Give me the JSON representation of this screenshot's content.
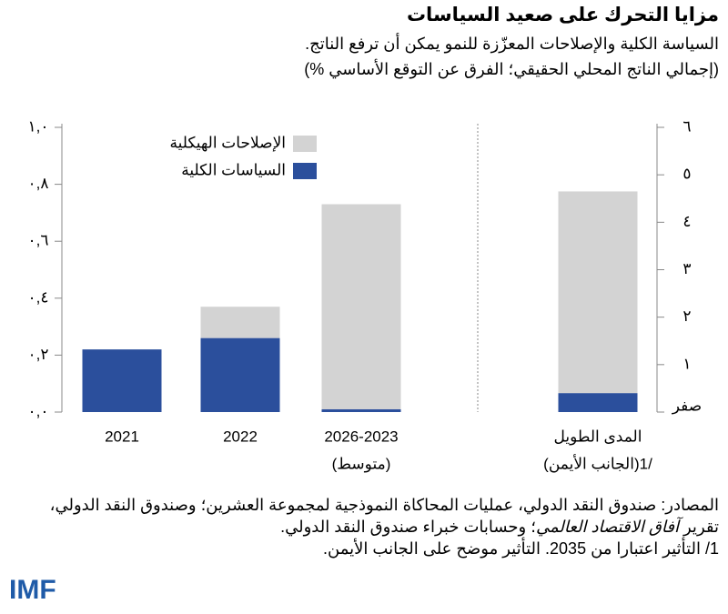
{
  "header": {
    "title": "مزايا التحرك على صعيد السياسات",
    "subtitle": "السياسة الكلية والإصلاحات المعزّزة للنمو يمكن أن ترفع الناتج.",
    "units": "(إجمالي الناتج المحلي الحقيقي؛ الفرق عن التوقع الأساسي %)"
  },
  "chart_data": {
    "type": "bar",
    "stacked": true,
    "categories": [
      [
        "2021"
      ],
      [
        "2022"
      ],
      [
        "2026-2023",
        "(متوسط)"
      ],
      [
        "المدى الطويل",
        "(الجانب الأيمن)1/"
      ]
    ],
    "series": [
      {
        "name": "السياسات الكلية",
        "color": "#2b4f9c",
        "values": [
          0.22,
          0.26,
          0.01,
          null
        ]
      },
      {
        "name": "الإصلاحات الهيكلية",
        "color": "#d3d3d3",
        "values": [
          null,
          0.11,
          0.72,
          null
        ]
      },
      {
        "name": "السياسات الكلية",
        "color": "#2b4f9c",
        "axis": "y2",
        "values": [
          null,
          null,
          null,
          0.4
        ]
      },
      {
        "name": "الإصلاحات الهيكلية",
        "color": "#d3d3d3",
        "axis": "y2",
        "values": [
          null,
          null,
          null,
          4.25
        ]
      }
    ],
    "ylim": [
      0,
      1
    ],
    "yticks": [
      {
        "value": 0,
        "label": "٠,٠"
      },
      {
        "value": 0.2,
        "label": "٠,٢"
      },
      {
        "value": 0.4,
        "label": "٠,٤"
      },
      {
        "value": 0.6,
        "label": "٠,٦"
      },
      {
        "value": 0.8,
        "label": "٠,٨"
      },
      {
        "value": 1,
        "label": "١,٠"
      }
    ],
    "y2lim": [
      0,
      6
    ],
    "y2ticks": [
      {
        "value": 0,
        "label": "صفر"
      },
      {
        "value": 1,
        "label": "١"
      },
      {
        "value": 2,
        "label": "٢"
      },
      {
        "value": 3,
        "label": "٣"
      },
      {
        "value": 4,
        "label": "٤"
      },
      {
        "value": 5,
        "label": "٥"
      },
      {
        "value": 6,
        "label": "٦"
      }
    ]
  },
  "footer": {
    "sources_1": "المصادر: صندوق النقد الدولي، عمليات المحاكاة النموذجية لمجموعة العشرين؛ وصندوق النقد الدولي،",
    "sources_2a": "تقرير ",
    "sources_2b": "آفاق الاقتصاد العالمي",
    "sources_2c": "؛ وحسابات خبراء صندوق النقد الدولي.",
    "note": "1/ التأثير اعتبارا من 2035. التأثير موضح على الجانب الأيمن.",
    "logo": "IMF"
  }
}
